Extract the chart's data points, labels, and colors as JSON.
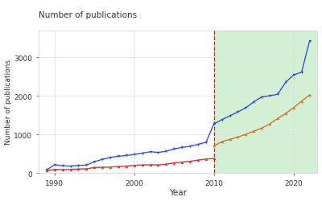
{
  "title": "Number of publications",
  "xlabel": "Year",
  "ylabel": "Number of publications",
  "bg_color": "#ffffff",
  "plot_bg_color": "#ffffff",
  "green_shade_color": "#d4f0d4",
  "vline_x": 2010,
  "vline_color": "#cc2222",
  "ylim": [
    0,
    3700
  ],
  "xlim": [
    1988,
    2023
  ],
  "yticks": [
    0,
    1000,
    2000,
    3000
  ],
  "xticks": [
    1990,
    2000,
    2010,
    2020
  ],
  "blue_color": "#3355cc",
  "red_color": "#cc3333",
  "orange_color": "#cc7722",
  "years_pre": [
    1989,
    1990,
    1991,
    1992,
    1993,
    1994,
    1995,
    1996,
    1997,
    1998,
    1999,
    2000,
    2001,
    2002,
    2003,
    2004,
    2005,
    2006,
    2007,
    2008,
    2009,
    2010
  ],
  "blue_pre": [
    75,
    210,
    185,
    175,
    195,
    200,
    290,
    350,
    400,
    430,
    450,
    480,
    510,
    550,
    530,
    560,
    620,
    660,
    690,
    740,
    790,
    1270
  ],
  "red_pre": [
    55,
    90,
    85,
    90,
    100,
    105,
    140,
    145,
    150,
    165,
    175,
    195,
    205,
    210,
    205,
    225,
    260,
    280,
    300,
    330,
    360,
    370
  ],
  "years_post": [
    2010,
    2011,
    2012,
    2013,
    2014,
    2015,
    2016,
    2017,
    2018,
    2019,
    2020,
    2021,
    2022
  ],
  "blue_post": [
    1270,
    1380,
    1480,
    1580,
    1690,
    1840,
    1970,
    2000,
    2040,
    2350,
    2540,
    2610,
    3420
  ],
  "orange_post": [
    700,
    810,
    870,
    930,
    1000,
    1080,
    1160,
    1270,
    1410,
    1540,
    1690,
    1860,
    2020
  ],
  "marker_size": 2.5,
  "line_width": 1.0
}
